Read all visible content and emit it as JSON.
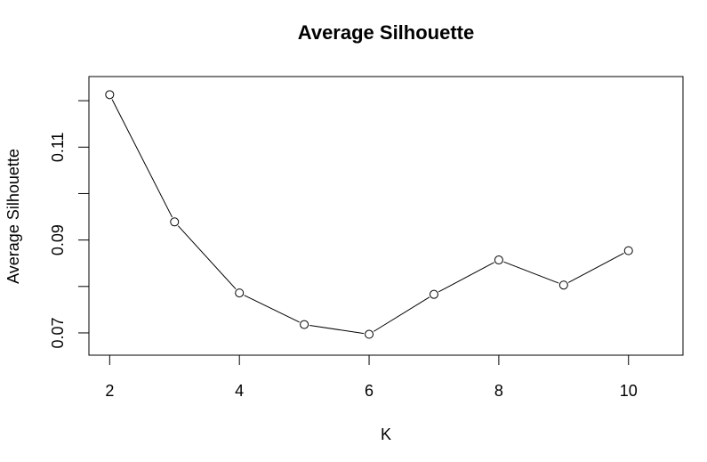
{
  "chart_data": {
    "type": "line",
    "title": "Average Silhouette",
    "xlabel": "K",
    "ylabel": "Average Silhouette",
    "x": [
      2,
      3,
      4,
      5,
      6,
      7,
      8,
      9,
      10
    ],
    "y": [
      0.1213,
      0.0939,
      0.0786,
      0.0718,
      0.0697,
      0.0783,
      0.0857,
      0.0803,
      0.0877
    ],
    "xlim": [
      1.68,
      10.84
    ],
    "ylim": [
      0.0652,
      0.1252
    ],
    "xticks": [
      2,
      4,
      6,
      8,
      10
    ],
    "yticks": [
      0.07,
      0.08,
      0.09,
      0.1,
      0.11,
      0.12
    ],
    "ytick_labels": [
      "0.07",
      "0.09",
      "0.11"
    ],
    "marker": "open-circle",
    "line_color": "#000000",
    "grid": false,
    "legend": "none"
  }
}
